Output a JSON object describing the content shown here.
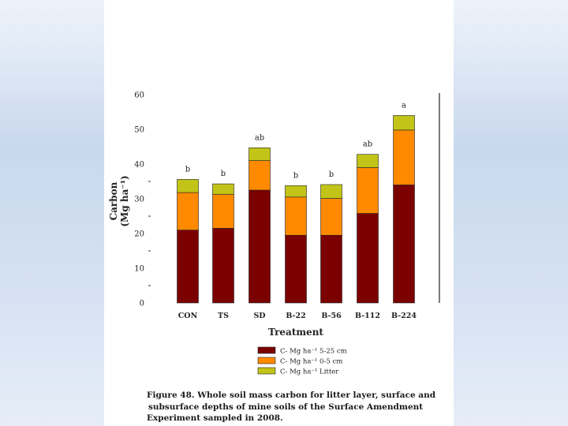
{
  "chart_data": {
    "type": "bar",
    "stacked": true,
    "categories": [
      "CON",
      "TS",
      "SD",
      "B-22",
      "B-56",
      "B-112",
      "B-224"
    ],
    "series": [
      {
        "name": "C- Mg ha⁻¹ 5-25 cm",
        "color": "#7b0000",
        "values": [
          21,
          21.5,
          32.5,
          19.5,
          19.5,
          25.8,
          34
        ]
      },
      {
        "name": "C- Mg ha⁻¹ 0-5 cm",
        "color": "#ff8a00",
        "values": [
          10.8,
          9.8,
          8.5,
          11,
          10.6,
          13.2,
          15.8
        ]
      },
      {
        "name": "C- Mg ha⁻¹ Litter",
        "color": "#c2c418",
        "values": [
          3.8,
          3.0,
          3.7,
          3.3,
          4.0,
          3.8,
          4.2
        ]
      }
    ],
    "significance": [
      "b",
      "b",
      "ab",
      "b",
      "b",
      "ab",
      "a"
    ],
    "ylim": [
      0,
      60
    ],
    "yticks": [
      "0",
      "10",
      "20",
      "30",
      "40",
      "50",
      "60"
    ],
    "ylabel_line1": "Carbon",
    "ylabel_line2": "(Mg ha⁻¹)",
    "xlabel": "Treatment"
  },
  "caption": {
    "line1": "Figure 48. Whole soil mass carbon for litter layer, surface and",
    "line2": "subsurface depths of mine soils of the Surface Amendment",
    "line3": "Experiment sampled in 2008."
  }
}
